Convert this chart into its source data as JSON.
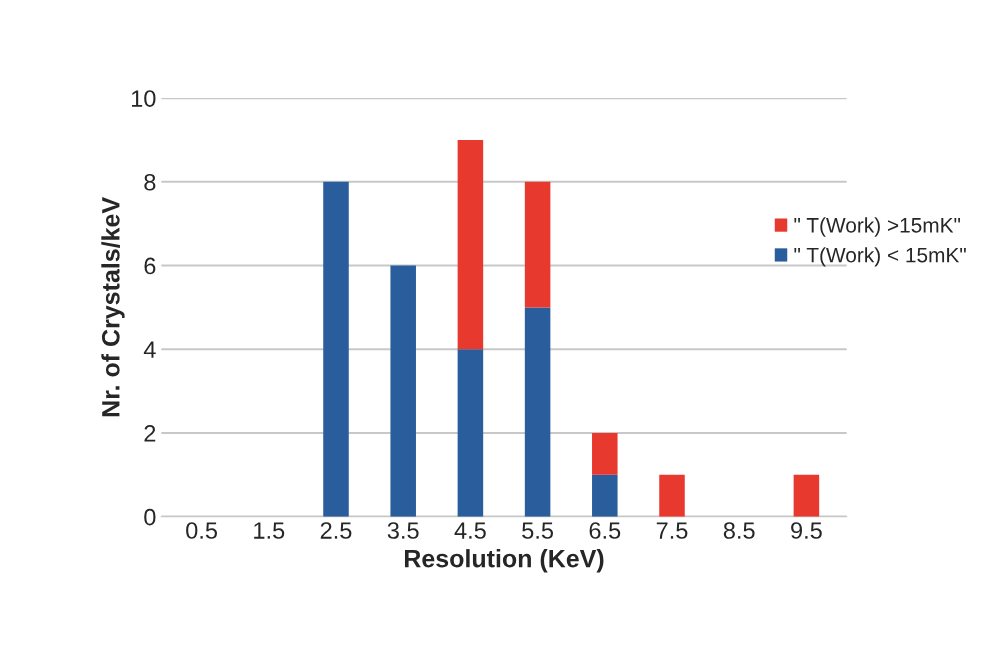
{
  "chart_data": {
    "type": "bar",
    "stacked": true,
    "xlabel": "Resolution (KeV)",
    "ylabel": "Nr. of Crystals/keV",
    "categories": [
      "0.5",
      "1.5",
      "2.5",
      "3.5",
      "4.5",
      "5.5",
      "6.5",
      "7.5",
      "8.5",
      "9.5"
    ],
    "series": [
      {
        "name": "\" T(Work) < 15mK\"",
        "color": "#2a5d9b",
        "values": [
          null,
          null,
          8,
          6,
          4,
          5,
          1,
          null,
          null,
          null
        ]
      },
      {
        "name": "\" T(Work) >15mK\"",
        "color": "#e8392f",
        "values": [
          null,
          null,
          null,
          null,
          5,
          3,
          1,
          1,
          null,
          1
        ]
      }
    ],
    "ylim": [
      0,
      10
    ],
    "yticks": [
      0,
      2,
      4,
      6,
      8,
      10
    ],
    "grid": "y",
    "legend": "right"
  }
}
